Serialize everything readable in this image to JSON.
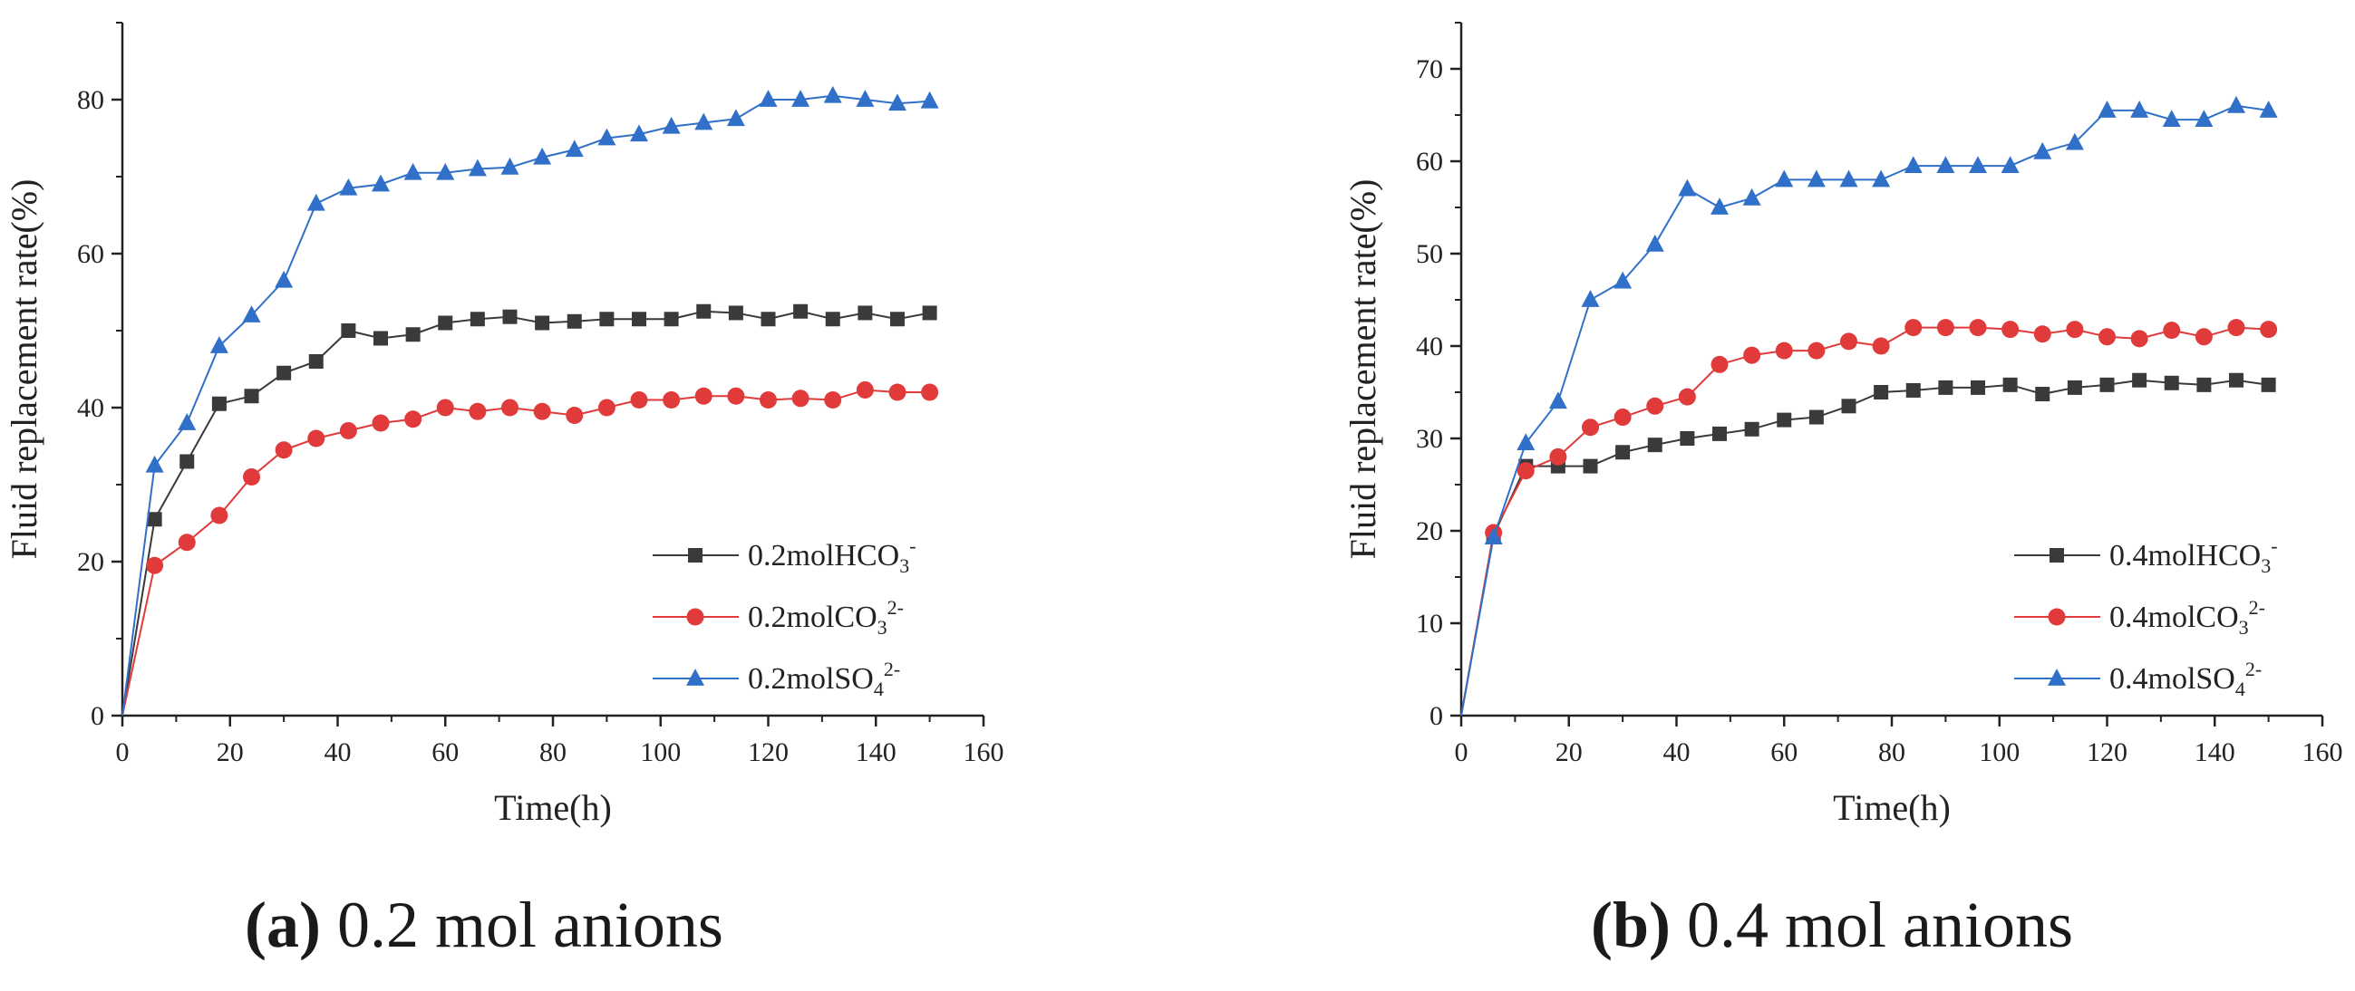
{
  "chart_data": [
    {
      "type": "line",
      "panel_letter": "(a)",
      "caption_text": "0.2 mol anions",
      "xlabel": "Time(h)",
      "ylabel": "Fluid replacement rate(%)",
      "xlim": [
        0,
        160
      ],
      "ylim": [
        0,
        90
      ],
      "xticks": [
        0,
        20,
        40,
        60,
        80,
        100,
        120,
        140,
        160
      ],
      "yticks": [
        0,
        20,
        40,
        60,
        80
      ],
      "legend_position": "bottom-right",
      "x": [
        0,
        6,
        12,
        18,
        24,
        30,
        36,
        42,
        48,
        54,
        60,
        66,
        72,
        78,
        84,
        90,
        96,
        102,
        108,
        114,
        120,
        126,
        132,
        138,
        144,
        150
      ],
      "series": [
        {
          "name": "0.2molHCO3-",
          "label_main": "0.2molHCO",
          "label_sub": "3",
          "label_sup": "-",
          "color": "#3a3a3a",
          "marker": "square",
          "values": [
            0,
            25.5,
            33,
            40.5,
            41.5,
            44.5,
            46,
            50,
            49,
            49.5,
            51,
            51.5,
            51.8,
            51,
            51.2,
            51.5,
            51.5,
            51.5,
            52.5,
            52.3,
            51.5,
            52.5,
            51.5,
            52.3,
            51.5,
            52.3
          ]
        },
        {
          "name": "0.2molCO32-",
          "label_main": "0.2molCO",
          "label_sub": "3",
          "label_sup": "2-",
          "color": "#e03a3a",
          "marker": "circle",
          "values": [
            0,
            19.5,
            22.5,
            26,
            31,
            34.5,
            36,
            37,
            38,
            38.5,
            40,
            39.5,
            40,
            39.5,
            39,
            40,
            41,
            41,
            41.5,
            41.5,
            41,
            41.2,
            41,
            42.3,
            42,
            42
          ]
        },
        {
          "name": "0.2molSO42-",
          "label_main": "0.2molSO",
          "label_sub": "4",
          "label_sup": "2-",
          "color": "#3070c8",
          "marker": "triangle",
          "values": [
            0,
            32.5,
            38,
            48,
            52,
            56.5,
            66.5,
            68.5,
            69,
            70.5,
            70.5,
            71,
            71.2,
            72.5,
            73.5,
            75,
            75.5,
            76.5,
            77,
            77.5,
            80,
            80,
            80.5,
            80,
            79.5,
            79.8
          ]
        }
      ]
    },
    {
      "type": "line",
      "panel_letter": "(b)",
      "caption_text": "0.4 mol anions",
      "xlabel": "Time(h)",
      "ylabel": "Fluid replacement rate(%)",
      "xlim": [
        0,
        160
      ],
      "ylim": [
        0,
        75
      ],
      "xticks": [
        0,
        20,
        40,
        60,
        80,
        100,
        120,
        140,
        160
      ],
      "yticks": [
        0,
        10,
        20,
        30,
        40,
        50,
        60,
        70
      ],
      "legend_position": "bottom-right",
      "x": [
        0,
        6,
        12,
        18,
        24,
        30,
        36,
        42,
        48,
        54,
        60,
        66,
        72,
        78,
        84,
        90,
        96,
        102,
        108,
        114,
        120,
        126,
        132,
        138,
        144,
        150
      ],
      "series": [
        {
          "name": "0.4molHCO3-",
          "label_main": "0.4molHCO",
          "label_sub": "3",
          "label_sup": "-",
          "color": "#3a3a3a",
          "marker": "square",
          "values": [
            0,
            19.5,
            27,
            27,
            27,
            28.5,
            29.3,
            30,
            30.5,
            31,
            32,
            32.3,
            33.5,
            35,
            35.2,
            35.5,
            35.5,
            35.8,
            34.8,
            35.5,
            35.8,
            36.3,
            36,
            35.8,
            36.3,
            35.8
          ]
        },
        {
          "name": "0.4molCO32-",
          "label_main": "0.4molCO",
          "label_sub": "3",
          "label_sup": "2-",
          "color": "#e03a3a",
          "marker": "circle",
          "values": [
            0,
            19.8,
            26.5,
            28,
            31.2,
            32.3,
            33.5,
            34.5,
            38,
            39,
            39.5,
            39.5,
            40.5,
            40,
            42,
            42,
            42,
            41.8,
            41.3,
            41.8,
            41,
            40.8,
            41.7,
            41,
            42,
            41.8
          ]
        },
        {
          "name": "0.4molSO42-",
          "label_main": "0.4molSO",
          "label_sub": "4",
          "label_sup": "2-",
          "color": "#3070c8",
          "marker": "triangle",
          "values": [
            0,
            19.3,
            29.5,
            34,
            45,
            47,
            51,
            57,
            55,
            56,
            58,
            58,
            58,
            58,
            59.5,
            59.5,
            59.5,
            59.5,
            61,
            62,
            65.5,
            65.5,
            64.5,
            64.5,
            66,
            65.5
          ]
        }
      ]
    }
  ]
}
